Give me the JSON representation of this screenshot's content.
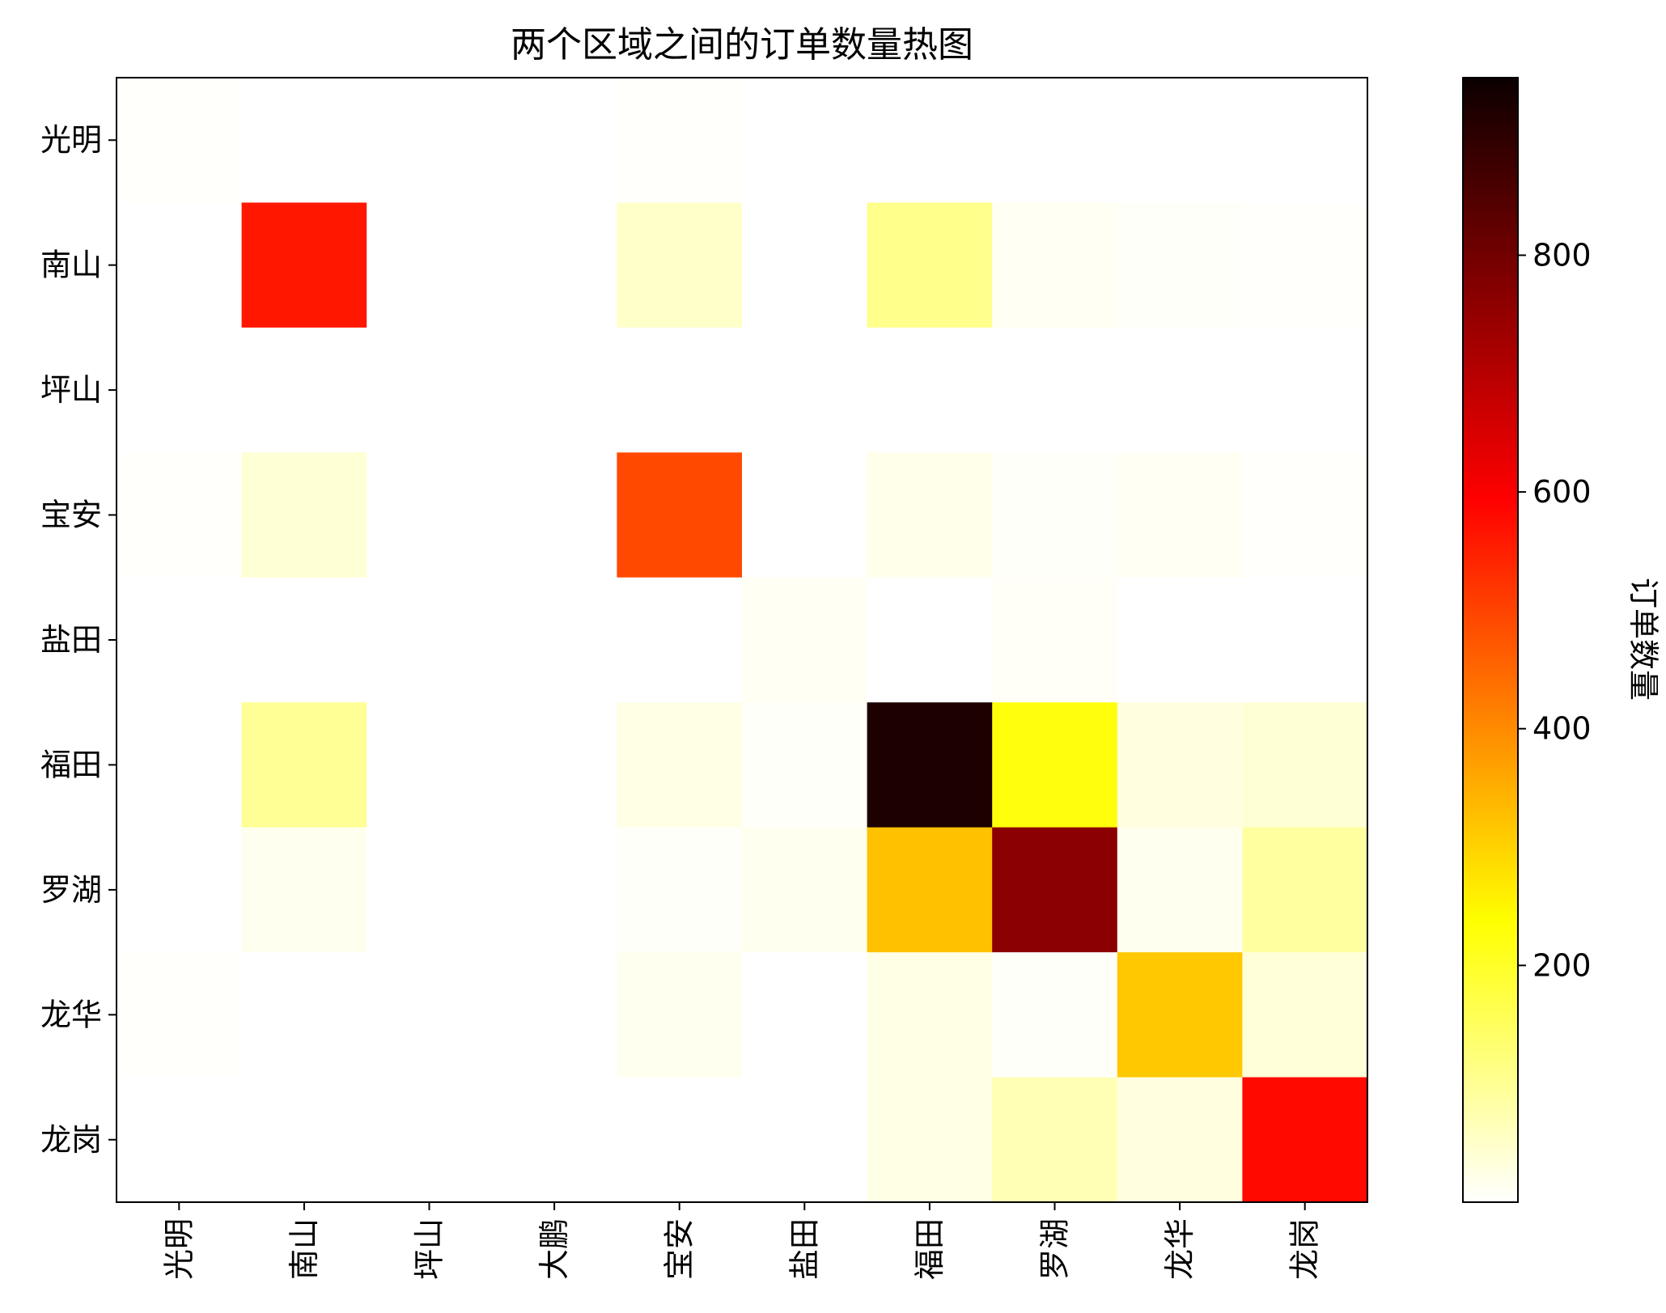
{
  "chart_data": {
    "type": "heatmap",
    "title": "两个区域之间的订单数量热图",
    "x_categories": [
      "光明",
      "南山",
      "坪山",
      "大鹏",
      "宝安",
      "盐田",
      "福田",
      "罗湖",
      "龙华",
      "龙岗"
    ],
    "y_categories": [
      "光明",
      "南山",
      "坪山",
      "宝安",
      "盐田",
      "福田",
      "罗湖",
      "龙华",
      "龙岗"
    ],
    "values": [
      [
        3,
        0,
        0,
        0,
        3,
        0,
        0,
        0,
        0,
        0
      ],
      [
        0,
        570,
        0,
        0,
        50,
        0,
        110,
        10,
        5,
        3
      ],
      [
        0,
        0,
        0,
        0,
        0,
        0,
        0,
        0,
        0,
        0
      ],
      [
        3,
        40,
        0,
        0,
        500,
        0,
        20,
        5,
        10,
        3
      ],
      [
        0,
        0,
        0,
        0,
        0,
        10,
        0,
        8,
        0,
        0
      ],
      [
        0,
        100,
        0,
        0,
        25,
        5,
        950,
        230,
        30,
        40
      ],
      [
        0,
        15,
        0,
        0,
        5,
        15,
        330,
        800,
        15,
        90
      ],
      [
        3,
        0,
        0,
        0,
        15,
        0,
        25,
        5,
        320,
        35
      ],
      [
        0,
        0,
        0,
        0,
        0,
        0,
        25,
        70,
        30,
        590
      ]
    ],
    "colormap": "hot_r",
    "vmin": 0,
    "vmax": 950,
    "colorbar": {
      "label": "订单数量",
      "ticks": [
        200,
        400,
        600,
        800
      ]
    },
    "grid": false
  }
}
